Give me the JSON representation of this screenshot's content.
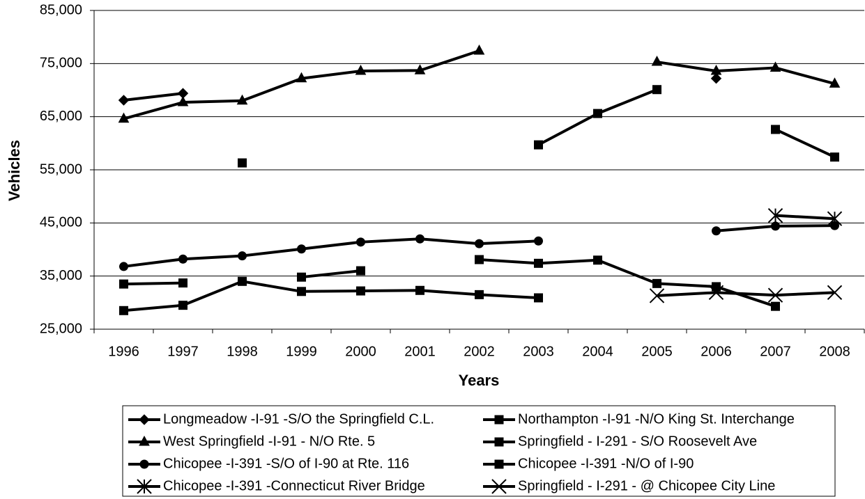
{
  "chart_data": {
    "type": "line",
    "x_label": "Years",
    "y_label": "Vehicles",
    "categories": [
      "1996",
      "1997",
      "1998",
      "1999",
      "2000",
      "2001",
      "2002",
      "2003",
      "2004",
      "2005",
      "2006",
      "2007",
      "2008"
    ],
    "ylim": [
      25000,
      85000
    ],
    "yticks": [
      {
        "value": 25000,
        "label": "25,000"
      },
      {
        "value": 35000,
        "label": "35,000"
      },
      {
        "value": 45000,
        "label": "45,000"
      },
      {
        "value": 55000,
        "label": "55,000"
      },
      {
        "value": 65000,
        "label": "65,000"
      },
      {
        "value": 75000,
        "label": "75,000"
      },
      {
        "value": 85000,
        "label": "85,000"
      }
    ],
    "grid": true,
    "legend": "bottom",
    "series": [
      {
        "name": "Longmeadow -I-91 -S/O the Springfield C.L.",
        "color": "#000000",
        "marker": "diamond",
        "values": [
          68100,
          69400,
          null,
          null,
          null,
          null,
          null,
          null,
          null,
          null,
          72200,
          null,
          null
        ]
      },
      {
        "name": "Northampton -I-91 -N/O King St. Interchange",
        "color": "#000000",
        "marker": "square",
        "values": [
          null,
          null,
          56300,
          null,
          null,
          null,
          null,
          59700,
          65600,
          70100,
          null,
          62600,
          57400
        ]
      },
      {
        "name": "West Springfield -I-91 - N/O Rte. 5",
        "color": "#000000",
        "marker": "triangle",
        "values": [
          64600,
          67700,
          68000,
          72200,
          73600,
          73700,
          77400,
          null,
          null,
          75300,
          73600,
          74200,
          71200
        ]
      },
      {
        "name": "Springfield - I-291 - S/O Roosevelt Ave",
        "color": "#000000",
        "marker": "square",
        "values": [
          33500,
          33700,
          null,
          34800,
          36000,
          null,
          38100,
          37400,
          38000,
          33600,
          33000,
          29300,
          null
        ]
      },
      {
        "name": "Chicopee -I-391 -S/O of I-90 at Rte. 116",
        "color": "#000000",
        "marker": "circle",
        "values": [
          36800,
          38200,
          38800,
          40100,
          41400,
          42000,
          41100,
          41600,
          null,
          null,
          43500,
          44400,
          44500
        ]
      },
      {
        "name": "Chicopee -I-391 -N/O of I-90",
        "color": "#000000",
        "marker": "square",
        "values": [
          28500,
          29500,
          34000,
          32100,
          32200,
          32300,
          31500,
          30900,
          null,
          null,
          null,
          null,
          null
        ]
      },
      {
        "name": "Chicopee -I-391 -Connecticut River Bridge",
        "color": "#000000",
        "marker": "asterisk",
        "values": [
          null,
          null,
          null,
          null,
          null,
          null,
          null,
          null,
          null,
          null,
          null,
          46400,
          45800
        ]
      },
      {
        "name": "Springfield - I-291 - @ Chicopee City Line",
        "color": "#000000",
        "marker": "x",
        "values": [
          null,
          null,
          null,
          null,
          null,
          null,
          null,
          null,
          null,
          31300,
          31900,
          31400,
          31900
        ]
      }
    ]
  }
}
